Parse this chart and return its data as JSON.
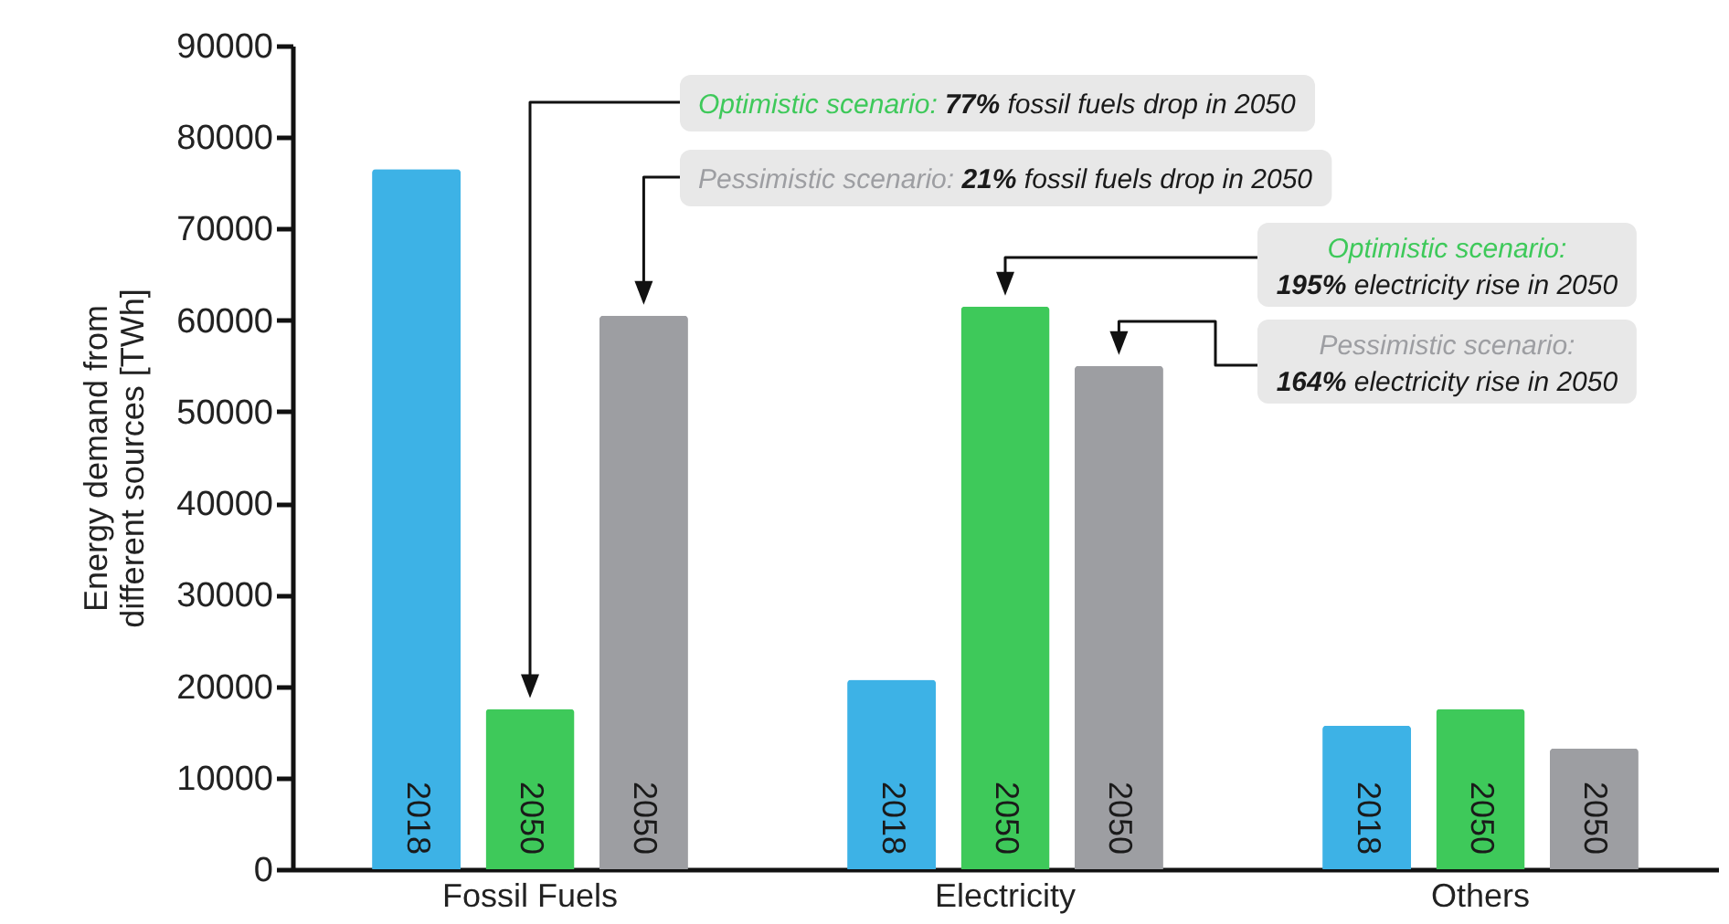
{
  "chart_data": {
    "type": "bar",
    "ylabel": "Energy demand from\ndifferent sources [TWh]",
    "categories": [
      "Fossil Fuels",
      "Electricity",
      "Others"
    ],
    "series": [
      {
        "name": "2018",
        "color": "#3db2e6",
        "values": [
          76500,
          20700,
          15700
        ]
      },
      {
        "name": "2050",
        "color": "#3ec95a",
        "values": [
          17500,
          61500,
          17500
        ]
      },
      {
        "name": "2050",
        "color": "#9d9ea2",
        "values": [
          60500,
          55000,
          13200
        ]
      }
    ],
    "ylim": [
      0,
      90000
    ],
    "yticks": [
      0,
      10000,
      20000,
      30000,
      40000,
      50000,
      60000,
      70000,
      80000,
      90000
    ],
    "grid": false,
    "legend": false,
    "annotations": [
      "Optimistic scenario: 77% fossil fuels drop in 2050",
      "Pessimistic scenario: 21% fossil fuels drop in 2050",
      "Optimistic scenario: 195% electricity rise in 2050",
      "Pessimistic scenario: 164% electricity rise in 2050"
    ]
  }
}
